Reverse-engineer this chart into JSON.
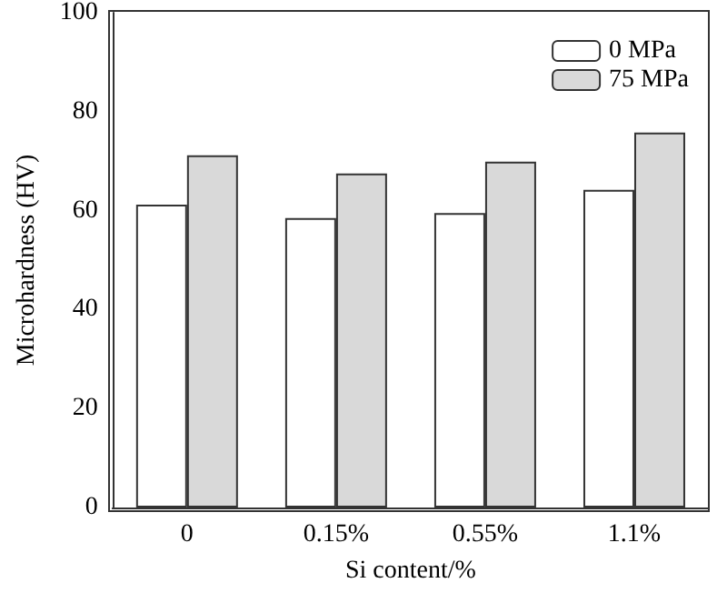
{
  "chart_data": {
    "type": "bar",
    "xlabel": "Si content/%",
    "ylabel": "Microhardness (HV)",
    "categories": [
      "0",
      "0.15%",
      "0.55%",
      "1.1%"
    ],
    "series": [
      {
        "name": "0 MPa",
        "color": "#ffffff",
        "values": [
          61.2,
          58.5,
          59.5,
          64.2
        ]
      },
      {
        "name": "75 MPa",
        "color": "#d9d9d9",
        "values": [
          71.2,
          67.5,
          69.9,
          75.8
        ]
      }
    ],
    "ylim": [
      0,
      100
    ],
    "yticks": [
      0,
      20,
      40,
      60,
      80,
      100
    ],
    "grid": false,
    "legend": "top right"
  }
}
